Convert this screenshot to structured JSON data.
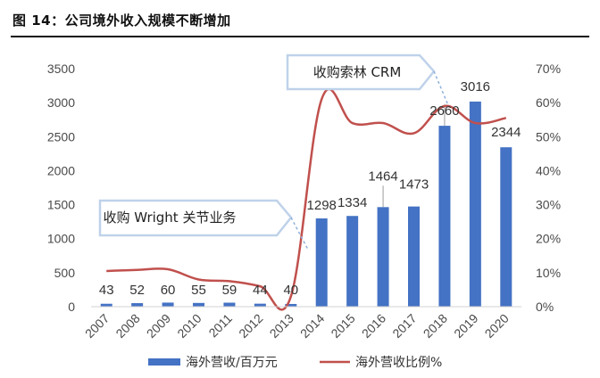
{
  "figure_title": "图 14：公司境外收入规模不断增加",
  "legend": {
    "bar": "海外营收/百万元",
    "line": "海外营收比例%"
  },
  "callouts": {
    "left": "收购 Wright 关节业务",
    "right": "收购索林 CRM"
  },
  "colors": {
    "bar": "#4472C4",
    "line": "#C0504D",
    "axis": "#d0d0d0",
    "callout_fill": "#ffffff",
    "callout_stroke": "#BFD2EA",
    "leader": "#8FB1DA"
  },
  "chart_data": {
    "type": "bar",
    "categories": [
      "2007",
      "2008",
      "2009",
      "2010",
      "2011",
      "2012",
      "2013",
      "2014",
      "2015",
      "2016",
      "2017",
      "2018",
      "2019",
      "2020"
    ],
    "series": [
      {
        "name": "海外营收/百万元",
        "type": "bar",
        "axis": "left",
        "values": [
          43,
          52,
          60,
          55,
          59,
          44,
          40,
          1298,
          1334,
          1464,
          1473,
          2660,
          3016,
          2344
        ],
        "labels": [
          "43",
          "52",
          "60",
          "55",
          "59",
          "44",
          "40",
          "1298",
          "1334",
          "1464",
          "1473",
          "2660",
          "3016",
          "2344"
        ]
      },
      {
        "name": "海外营收比例%",
        "type": "line",
        "axis": "right",
        "values": [
          10.5,
          10.8,
          11,
          8,
          7.5,
          6,
          3,
          61,
          54,
          54,
          51,
          59,
          54,
          55.5
        ]
      }
    ],
    "left_axis": {
      "min": 0,
      "max": 3500,
      "ticks": [
        "0",
        "500",
        "1000",
        "1500",
        "2000",
        "2500",
        "3000",
        "3500"
      ]
    },
    "right_axis": {
      "min": 0,
      "max": 70,
      "ticks": [
        "0%",
        "10%",
        "20%",
        "30%",
        "40%",
        "50%",
        "60%",
        "70%"
      ]
    },
    "legend_position": "bottom",
    "grid": false
  }
}
